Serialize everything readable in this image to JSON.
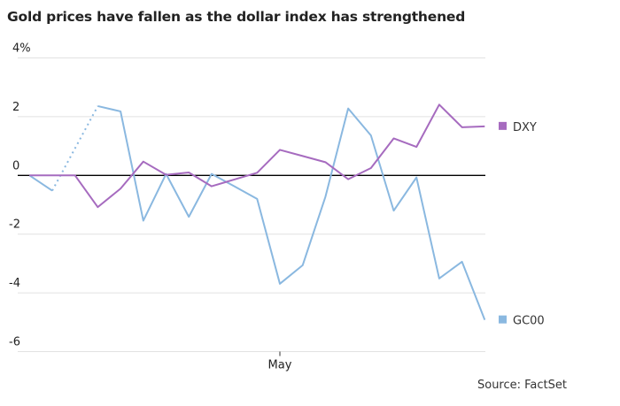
{
  "title": "Gold prices have fallen as the dollar index has strengthened",
  "source": "Source: FactSet",
  "chart_data": {
    "type": "line",
    "title": "Gold prices have fallen as the dollar index has strengthened",
    "ylim": [
      -6,
      4
    ],
    "yticks": [
      4,
      2,
      0,
      -2,
      -4,
      -6
    ],
    "ytick_labels": [
      "4%",
      "2",
      "0",
      "-2",
      "-4",
      "-6"
    ],
    "x": [
      0,
      1,
      2,
      3,
      4,
      5,
      6,
      7,
      8,
      9,
      10,
      11,
      12,
      13,
      14,
      15,
      16,
      17,
      18,
      19,
      20
    ],
    "xtick_index": 11,
    "xtick_labels": [
      "May"
    ],
    "grid": true,
    "legend": "right",
    "series": [
      {
        "name": "DXY",
        "color": "#a66bbf",
        "values": [
          0,
          0,
          0,
          -1.08,
          -0.45,
          0.47,
          0.02,
          0.1,
          -0.37,
          -0.14,
          0.09,
          0.87,
          0.66,
          0.45,
          -0.13,
          0.25,
          1.26,
          0.97,
          2.41,
          1.64,
          1.67
        ]
      },
      {
        "name": "GC00",
        "color": "#8ab8e0",
        "values": [
          0,
          -0.52,
          null,
          2.36,
          2.18,
          -1.54,
          0.05,
          -1.41,
          0.05,
          -0.37,
          -0.8,
          -3.69,
          -3.06,
          -0.73,
          2.28,
          1.36,
          -1.2,
          -0.07,
          -3.51,
          -2.94,
          -4.92
        ]
      }
    ]
  }
}
